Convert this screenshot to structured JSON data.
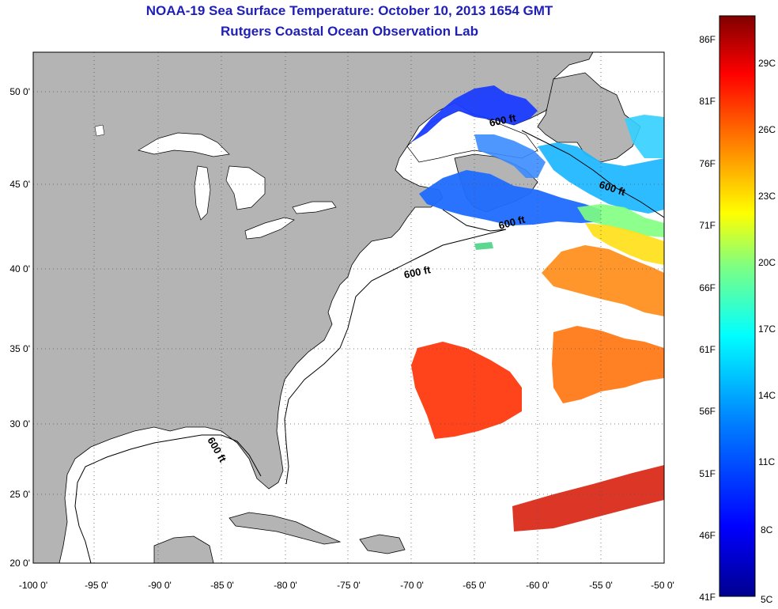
{
  "title": "NOAA-19 Sea Surface Temperature:  October 10, 2013 1654 GMT",
  "subtitle": "Rutgers Coastal Ocean Observation Lab",
  "lat_labels": [
    "50 0'",
    "45 0'",
    "40 0'",
    "35 0'",
    "30 0'",
    "25 0'",
    "20 0'"
  ],
  "lon_labels": [
    "-100 0'",
    "-95 0'",
    "-90 0'",
    "-85 0'",
    "-80 0'",
    "-75 0'",
    "-70 0'",
    "-65 0'",
    "-60 0'",
    "-55 0'",
    "-50 0'"
  ],
  "contour_labels": [
    "600 ft",
    "600 ft",
    "600 ft",
    "600 ft",
    "600 ft"
  ],
  "colorbar": {
    "fahrenheit": [
      "86F",
      "81F",
      "76F",
      "71F",
      "66F",
      "61F",
      "56F",
      "51F",
      "46F",
      "41F"
    ],
    "celsius": [
      "29C",
      "26C",
      "23C",
      "20C",
      "17C",
      "14C",
      "11C",
      "8C",
      "5C"
    ],
    "stops": [
      "#00008f",
      "#0000ff",
      "#0080ff",
      "#00ffff",
      "#80ff80",
      "#ffff00",
      "#ff8000",
      "#ff0000",
      "#800000"
    ]
  },
  "colors": {
    "land": "#b4b4b4",
    "title": "#1f1fb8",
    "ocean_no_data": "#ffffff"
  }
}
